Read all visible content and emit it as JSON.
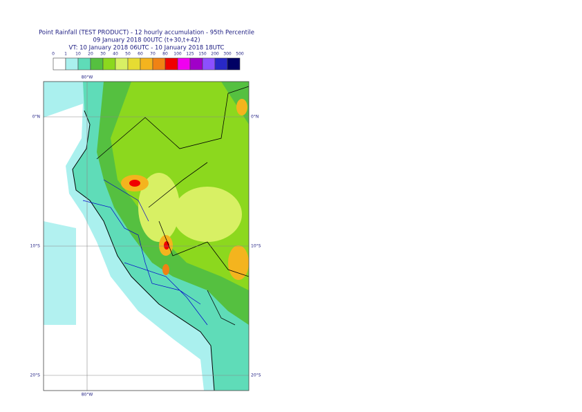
{
  "title": {
    "lines": [
      "Point Rainfall (TEST PRODUCT) - 12 hourly accumulation - 95th Percentile",
      "09 January 2018 00UTC (t+30,t+42)",
      "VT: 10 January 2018 06UTC - 10 January 2018 18UTC"
    ]
  },
  "colorbar": {
    "labels": [
      "0",
      "1",
      "10",
      "20",
      "30",
      "40",
      "50",
      "60",
      "70",
      "80",
      "100",
      "125",
      "150",
      "200",
      "300",
      "500"
    ],
    "colors": [
      "#ffffff",
      "#aaf0ee",
      "#5fdcb8",
      "#55c040",
      "#8cd81e",
      "#d8f064",
      "#e6dc32",
      "#f4b41e",
      "#f08214",
      "#f00000",
      "#f000f0",
      "#a000c8",
      "#8c50ff",
      "#2828c8",
      "#000064"
    ]
  },
  "map": {
    "top_labels": [
      "80°W"
    ],
    "bottom_labels": [
      "80°W"
    ],
    "left_labels": [
      "0°N",
      "10°S",
      "20°S"
    ],
    "right_labels": [
      "0°N",
      "10°S",
      "20°S"
    ]
  }
}
